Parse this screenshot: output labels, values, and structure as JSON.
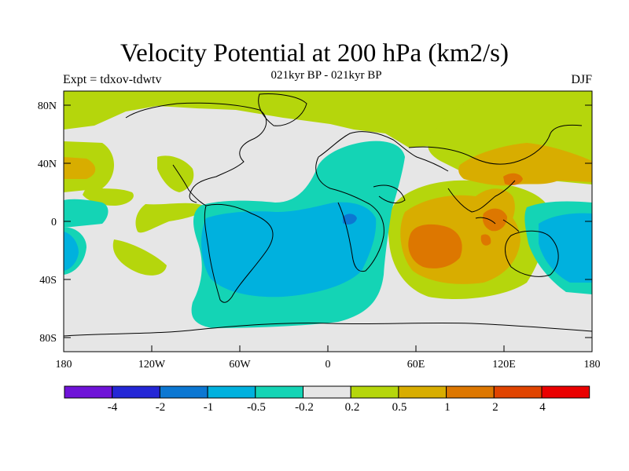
{
  "title": "Velocity Potential at 200 hPa (km2/s)",
  "subtitle": "021kyr BP - 021kyr BP",
  "experiment": "Expt = tdxov-tdwtv",
  "season": "DJF",
  "map": {
    "lat_ticks": [
      "80N",
      "40N",
      "0",
      "40S",
      "80S"
    ],
    "lon_ticks": [
      "180",
      "120W",
      "60W",
      "0",
      "60E",
      "120E",
      "180"
    ]
  },
  "colorbar": {
    "colors": [
      "#6f13d8",
      "#2427d6",
      "#0c77d2",
      "#00b1de",
      "#14d4b5",
      "#e6e6e6",
      "#b5d60c",
      "#d8ad00",
      "#dd7700",
      "#e04400",
      "#ea0000"
    ],
    "labels": [
      "-4",
      "-2",
      "-1",
      "-0.5",
      "-0.2",
      "0.2",
      "0.5",
      "1",
      "2",
      "4"
    ]
  },
  "colors": {
    "neutral": "#e6e6e6",
    "pos_weak": "#b5d60c",
    "pos_mid": "#d8ad00",
    "pos_strong": "#dd7700",
    "pos_stronger": "#e04400",
    "neg_weak": "#14d4b5",
    "neg_mid": "#00b1de",
    "neg_strong": "#0c77d2"
  }
}
